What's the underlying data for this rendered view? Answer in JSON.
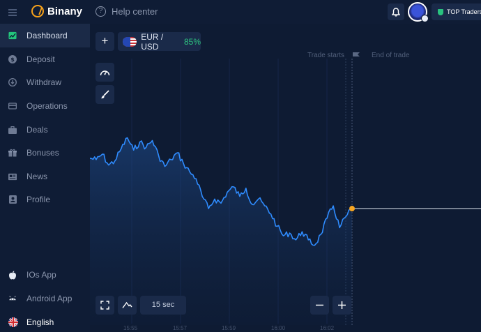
{
  "header": {
    "logo_text": "Binany",
    "help_label": "Help center",
    "top_traders_label": "TOP Traders",
    "icons": [
      "menu-icon",
      "logo-icon",
      "help-circle-icon",
      "bell-icon",
      "avatar",
      "shield-icon"
    ]
  },
  "sidebar": {
    "items": [
      {
        "label": "Dashboard",
        "icon": "chart-icon"
      },
      {
        "label": "Deposit",
        "icon": "dollar-icon"
      },
      {
        "label": "Withdraw",
        "icon": "download-icon"
      },
      {
        "label": "Operations",
        "icon": "card-icon"
      },
      {
        "label": "Deals",
        "icon": "briefcase-icon"
      },
      {
        "label": "Bonuses",
        "icon": "gift-icon"
      },
      {
        "label": "News",
        "icon": "newspaper-icon"
      },
      {
        "label": "Profile",
        "icon": "person-icon"
      }
    ],
    "bottom_items": [
      {
        "label": "IOs App",
        "icon": "apple-icon"
      },
      {
        "label": "Android App",
        "icon": "android-icon"
      },
      {
        "label": "English",
        "icon": "uk-flag-icon"
      }
    ]
  },
  "asset": {
    "name": "EUR / USD",
    "payout": "85%"
  },
  "chart": {
    "trade_starts_label": "Trade starts",
    "end_of_trade_label": "End of trade",
    "timeframe": "15 sec",
    "line_color": "#2f8cff",
    "marker_color": "#f6a623"
  },
  "chart_data": {
    "type": "line",
    "x_ticks": [
      "15:55",
      "15:57",
      "15:59",
      "16:00",
      "16:02"
    ],
    "series": [
      {
        "values": [
          0.78,
          0.77,
          0.81,
          0.73,
          0.76,
          0.85,
          0.93,
          0.84,
          0.9,
          0.86,
          0.91,
          0.8,
          0.72,
          0.77,
          0.82,
          0.74,
          0.68,
          0.63,
          0.5,
          0.41,
          0.48,
          0.45,
          0.53,
          0.57,
          0.5,
          0.56,
          0.44,
          0.48,
          0.43,
          0.37,
          0.28,
          0.21,
          0.23,
          0.18,
          0.24,
          0.18,
          0.14,
          0.22,
          0.34,
          0.43,
          0.27,
          0.35,
          0.41
        ]
      }
    ]
  }
}
